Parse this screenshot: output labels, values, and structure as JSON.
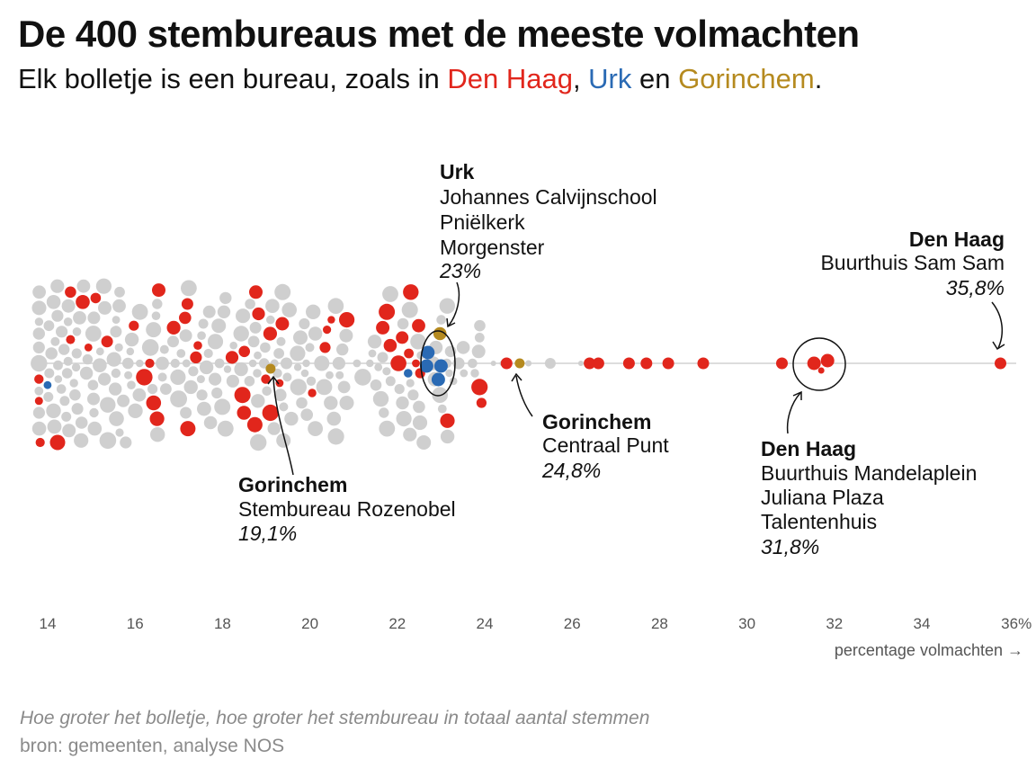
{
  "title": "De 400 stembureaus met de meeste volmachten",
  "subtitle": {
    "prefix": "Elk bolletje is een bureau, zoals in ",
    "city1": "Den Haag",
    "sep1": ", ",
    "city2": "Urk",
    "sep2": " en ",
    "city3": "Gorinchem",
    "suffix": "."
  },
  "colors": {
    "den_haag": "#e1261c",
    "urk": "#2a6ab4",
    "gorinchem": "#b58a1f",
    "other": "#cfcfcf",
    "axis": "#dddddd"
  },
  "chart_data": {
    "type": "scatter",
    "subtype": "beeswarm",
    "x_unit": "percentage volmachten",
    "xlim": [
      13.5,
      36.5
    ],
    "x_ticks": [
      "14",
      "16",
      "18",
      "20",
      "22",
      "24",
      "26",
      "28",
      "30",
      "32",
      "34",
      "36%"
    ],
    "xlabel": "percentage volmachten →",
    "total_points": 400,
    "size_encodes": "totaal aantal stemmen",
    "series": [
      {
        "name": "Den Haag",
        "color": "#e1261c"
      },
      {
        "name": "Urk",
        "color": "#2a6ab4"
      },
      {
        "name": "Gorinchem",
        "color": "#b58a1f"
      },
      {
        "name": "",
        "color": "#cfcfcf"
      }
    ],
    "highlight_points": [
      {
        "group": "Den Haag",
        "x": 24.5
      },
      {
        "group": "Den Haag",
        "x": 26.4
      },
      {
        "group": "Den Haag",
        "x": 26.6
      },
      {
        "group": "Den Haag",
        "x": 27.3
      },
      {
        "group": "Den Haag",
        "x": 27.7
      },
      {
        "group": "Den Haag",
        "x": 28.2
      },
      {
        "group": "Den Haag",
        "x": 29.0
      },
      {
        "group": "Den Haag",
        "x": 30.8
      },
      {
        "group": "Den Haag",
        "x": 31.5
      },
      {
        "group": "Den Haag",
        "x": 31.8
      },
      {
        "group": "Den Haag",
        "x": 31.9
      },
      {
        "group": "Den Haag",
        "x": 35.8
      },
      {
        "group": "Urk",
        "x": 22.7
      },
      {
        "group": "Urk",
        "x": 23.0
      },
      {
        "group": "Urk",
        "x": 23.0
      },
      {
        "group": "Urk",
        "x": 23.0
      },
      {
        "group": "Gorinchem",
        "x": 19.1
      },
      {
        "group": "Gorinchem",
        "x": 24.8
      }
    ],
    "annotations": [
      {
        "city": "Urk",
        "lines": [
          "Johannes Calvijnschool",
          "Pniëlkerk",
          "Morgenster"
        ],
        "value": "23%"
      },
      {
        "city": "Den Haag",
        "lines": [
          "Buurthuis Sam Sam"
        ],
        "value": "35,8%"
      },
      {
        "city": "Gorinchem",
        "lines": [
          "Centraal Punt"
        ],
        "value": "24,8%"
      },
      {
        "city": "Gorinchem",
        "lines": [
          "Stembureau Rozenobel"
        ],
        "value": "19,1%"
      },
      {
        "city": "Den Haag",
        "lines": [
          "Buurthuis Mandelaplein",
          "Juliana Plaza",
          "Talentenhuis"
        ],
        "value": "31,8%"
      }
    ]
  },
  "footer": {
    "note": "Hoe groter het bolletje, hoe groter het stembureau in totaal aantal stemmen",
    "source": "bron: gemeenten, analyse NOS"
  }
}
